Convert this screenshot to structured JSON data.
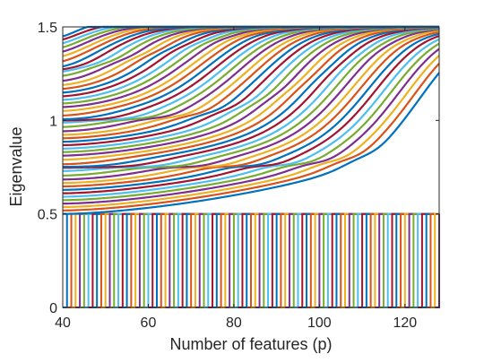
{
  "chart_data": {
    "type": "line",
    "title": "",
    "xlabel": "Number of features (p)",
    "ylabel": "Eigenvalue",
    "xlim": [
      40,
      128
    ],
    "ylim": [
      0,
      1.5
    ],
    "xticks": [
      40,
      60,
      80,
      100,
      120
    ],
    "yticks": [
      0,
      0.5,
      1,
      1.5
    ],
    "x_tick_labels": [
      "40",
      "60",
      "80",
      "100",
      "120"
    ],
    "y_tick_labels": [
      "0",
      "0.5",
      "1",
      "1.5"
    ],
    "grid": false,
    "legend": "none",
    "colors": [
      "#0072BD",
      "#D95319",
      "#EDB120",
      "#7E2F8E",
      "#77AC30",
      "#4DBEEE",
      "#A2142F"
    ],
    "description_of_series": "About 88 eigenvalue curves, one per index k; the lower band (eigenvalues 0 to 0.5) consists of vertical jumps at each integer p from 41 to 128, and the upper band contains about 50 curves rising from 0.5 to 1.5 with plateaus near 0.75, 1.0 and 1.25.",
    "series_count_upper": 50,
    "series_count_lower": 88,
    "lower_jump_x_range": [
      41,
      128
    ],
    "upper_curve_start_values_at_x40": [
      0.5,
      1.4
    ],
    "plateau_levels": [
      0.75,
      1.0,
      1.25
    ]
  }
}
